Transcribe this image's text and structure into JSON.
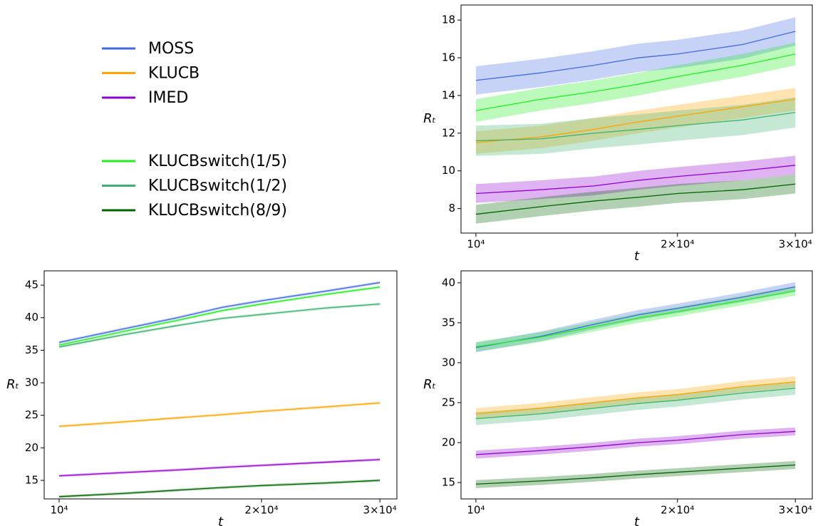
{
  "legend": [
    {
      "name": "MOSS",
      "color": "#4169e1"
    },
    {
      "name": "KLUCB",
      "color": "#ffa500"
    },
    {
      "name": "IMED",
      "color": "#9400d3"
    },
    {
      "name": "KLUCBswitch(1/5)",
      "color": "#22ee22"
    },
    {
      "name": "KLUCBswitch(1/2)",
      "color": "#3cb371"
    },
    {
      "name": "KLUCBswitch(8/9)",
      "color": "#006400"
    }
  ],
  "chart_data": [
    {
      "type": "line",
      "xlabel": "t",
      "ylabel": "Rₜ",
      "xscale": "log",
      "xlim": [
        9500,
        31800
      ],
      "ylim": [
        6.7,
        18.8
      ],
      "xticks": [
        {
          "value": 10000,
          "label": "10⁴"
        },
        {
          "value": 20000,
          "label": "2×10⁴"
        },
        {
          "value": 30000,
          "label": "3×10⁴"
        }
      ],
      "yticks": [
        8,
        10,
        12,
        14,
        16,
        18
      ],
      "x": [
        10000,
        12500,
        15000,
        17500,
        20000,
        25000,
        30000
      ],
      "series": [
        {
          "color": "#4169e1",
          "values": [
            14.8,
            15.2,
            15.6,
            16.0,
            16.2,
            16.7,
            17.4
          ],
          "lower": [
            14.05,
            14.45,
            14.85,
            15.25,
            15.45,
            15.95,
            16.65
          ],
          "upper": [
            15.55,
            15.95,
            16.35,
            16.75,
            16.95,
            17.45,
            18.15
          ]
        },
        {
          "color": "#ffa500",
          "values": [
            11.5,
            11.8,
            12.2,
            12.6,
            12.9,
            13.4,
            13.8
          ],
          "lower": [
            10.9,
            11.2,
            11.6,
            12.0,
            12.3,
            12.8,
            13.2
          ],
          "upper": [
            12.1,
            12.4,
            12.8,
            13.2,
            13.5,
            14.0,
            14.4
          ]
        },
        {
          "color": "#9400d3",
          "values": [
            8.8,
            9.0,
            9.2,
            9.5,
            9.7,
            10.0,
            10.3
          ],
          "lower": [
            8.3,
            8.5,
            8.7,
            9.0,
            9.2,
            9.5,
            9.8
          ],
          "upper": [
            9.3,
            9.5,
            9.7,
            10.0,
            10.2,
            10.5,
            10.8
          ]
        },
        {
          "color": "#22ee22",
          "values": [
            13.2,
            13.8,
            14.2,
            14.6,
            15.0,
            15.6,
            16.2
          ],
          "lower": [
            12.6,
            13.2,
            13.6,
            14.0,
            14.4,
            15.0,
            15.6
          ],
          "upper": [
            13.8,
            14.4,
            14.8,
            15.2,
            15.6,
            16.2,
            16.8
          ]
        },
        {
          "color": "#3cb371",
          "values": [
            11.6,
            11.7,
            12.0,
            12.2,
            12.4,
            12.7,
            13.1
          ],
          "lower": [
            10.8,
            10.9,
            11.2,
            11.4,
            11.6,
            11.9,
            12.3
          ],
          "upper": [
            12.4,
            12.5,
            12.8,
            13.0,
            13.2,
            13.5,
            13.9
          ]
        },
        {
          "color": "#006400",
          "values": [
            7.7,
            8.1,
            8.4,
            8.6,
            8.8,
            9.0,
            9.3
          ],
          "lower": [
            7.2,
            7.6,
            7.9,
            8.1,
            8.3,
            8.5,
            8.8
          ],
          "upper": [
            8.2,
            8.6,
            8.9,
            9.1,
            9.3,
            9.5,
            9.8
          ]
        }
      ]
    },
    {
      "type": "line",
      "xlabel": "t",
      "ylabel": "Rₜ",
      "xscale": "log",
      "xlim": [
        9500,
        31800
      ],
      "ylim": [
        12.15,
        47.2
      ],
      "xticks": [
        {
          "value": 10000,
          "label": "10⁴"
        },
        {
          "value": 20000,
          "label": "2×10⁴"
        },
        {
          "value": 30000,
          "label": "3×10⁴"
        }
      ],
      "yticks": [
        15,
        20,
        25,
        30,
        35,
        40,
        45
      ],
      "x": [
        10000,
        12500,
        15000,
        17500,
        20000,
        25000,
        30000
      ],
      "series": [
        {
          "color": "#4169e1",
          "values": [
            36.2,
            38.3,
            40.0,
            41.6,
            42.6,
            44.1,
            45.4
          ],
          "lower": [
            36.0,
            38.1,
            39.8,
            41.4,
            42.4,
            43.9,
            45.2
          ],
          "upper": [
            36.4,
            38.5,
            40.2,
            41.8,
            42.8,
            44.3,
            45.6
          ]
        },
        {
          "color": "#ffa500",
          "values": [
            23.3,
            24.0,
            24.6,
            25.1,
            25.6,
            26.3,
            26.9
          ],
          "lower": [
            23.1,
            23.8,
            24.4,
            24.9,
            25.4,
            26.1,
            26.7
          ],
          "upper": [
            23.5,
            24.2,
            24.8,
            25.3,
            25.8,
            26.5,
            27.1
          ]
        },
        {
          "color": "#9400d3",
          "values": [
            15.7,
            16.2,
            16.6,
            17.0,
            17.3,
            17.8,
            18.2
          ],
          "lower": [
            15.5,
            16.0,
            16.4,
            16.8,
            17.1,
            17.6,
            18.0
          ],
          "upper": [
            15.9,
            16.4,
            16.8,
            17.2,
            17.5,
            18.0,
            18.4
          ]
        },
        {
          "color": "#22ee22",
          "values": [
            35.8,
            37.9,
            39.6,
            41.1,
            42.1,
            43.6,
            44.7
          ],
          "lower": [
            35.6,
            37.7,
            39.4,
            40.9,
            41.9,
            43.4,
            44.5
          ],
          "upper": [
            36.0,
            38.1,
            39.8,
            41.3,
            42.3,
            43.8,
            44.9
          ]
        },
        {
          "color": "#3cb371",
          "values": [
            35.5,
            37.4,
            38.8,
            39.9,
            40.5,
            41.5,
            42.1
          ],
          "lower": [
            35.3,
            37.2,
            38.6,
            39.7,
            40.3,
            41.3,
            41.9
          ],
          "upper": [
            35.7,
            37.6,
            39.0,
            40.1,
            40.7,
            41.7,
            42.3
          ]
        },
        {
          "color": "#006400",
          "values": [
            12.5,
            13.0,
            13.5,
            13.9,
            14.2,
            14.6,
            15.0
          ],
          "lower": [
            12.3,
            12.8,
            13.3,
            13.7,
            14.0,
            14.4,
            14.8
          ],
          "upper": [
            12.7,
            13.2,
            13.7,
            14.1,
            14.4,
            14.8,
            15.2
          ]
        }
      ]
    },
    {
      "type": "line",
      "xlabel": "t",
      "ylabel": "Rₜ",
      "xscale": "log",
      "xlim": [
        9500,
        31800
      ],
      "ylim": [
        12.95,
        41.5
      ],
      "xticks": [
        {
          "value": 10000,
          "label": "10⁴"
        },
        {
          "value": 20000,
          "label": "2×10⁴"
        },
        {
          "value": 30000,
          "label": "3×10⁴"
        }
      ],
      "yticks": [
        15,
        20,
        25,
        30,
        35,
        40
      ],
      "x": [
        10000,
        12500,
        15000,
        17500,
        20000,
        25000,
        30000
      ],
      "series": [
        {
          "color": "#4169e1",
          "values": [
            31.9,
            33.3,
            34.8,
            36.0,
            36.8,
            38.2,
            39.5
          ],
          "lower": [
            31.3,
            32.7,
            34.2,
            35.4,
            36.2,
            37.6,
            38.9
          ],
          "upper": [
            32.5,
            33.9,
            35.4,
            36.6,
            37.4,
            38.8,
            40.1
          ]
        },
        {
          "color": "#ffa500",
          "values": [
            23.6,
            24.3,
            25.0,
            25.6,
            26.0,
            27.0,
            27.6
          ],
          "lower": [
            22.9,
            23.6,
            24.3,
            24.9,
            25.3,
            26.3,
            26.9
          ],
          "upper": [
            24.3,
            25.0,
            25.7,
            26.3,
            26.7,
            27.7,
            28.3
          ]
        },
        {
          "color": "#9400d3",
          "values": [
            18.5,
            19.0,
            19.5,
            20.0,
            20.3,
            21.0,
            21.4
          ],
          "lower": [
            18.0,
            18.5,
            19.0,
            19.5,
            19.8,
            20.5,
            20.9
          ],
          "upper": [
            19.0,
            19.5,
            20.0,
            20.5,
            20.8,
            21.5,
            21.9
          ]
        },
        {
          "color": "#22ee22",
          "values": [
            32.0,
            33.2,
            34.5,
            35.6,
            36.4,
            37.8,
            39.0
          ],
          "lower": [
            31.4,
            32.6,
            33.9,
            35.0,
            35.8,
            37.2,
            38.4
          ],
          "upper": [
            32.6,
            33.8,
            35.1,
            36.2,
            37.0,
            38.4,
            39.6
          ]
        },
        {
          "color": "#3cb371",
          "values": [
            23.0,
            23.6,
            24.3,
            24.9,
            25.3,
            26.2,
            26.8
          ],
          "lower": [
            22.2,
            22.8,
            23.5,
            24.1,
            24.5,
            25.4,
            26.0
          ],
          "upper": [
            23.8,
            24.4,
            25.1,
            25.7,
            26.1,
            27.0,
            27.6
          ]
        },
        {
          "color": "#006400",
          "values": [
            14.8,
            15.2,
            15.6,
            16.0,
            16.3,
            16.8,
            17.2
          ],
          "lower": [
            14.3,
            14.7,
            15.1,
            15.5,
            15.8,
            16.3,
            16.7
          ],
          "upper": [
            15.3,
            15.7,
            16.1,
            16.5,
            16.8,
            17.3,
            17.7
          ]
        }
      ]
    }
  ]
}
